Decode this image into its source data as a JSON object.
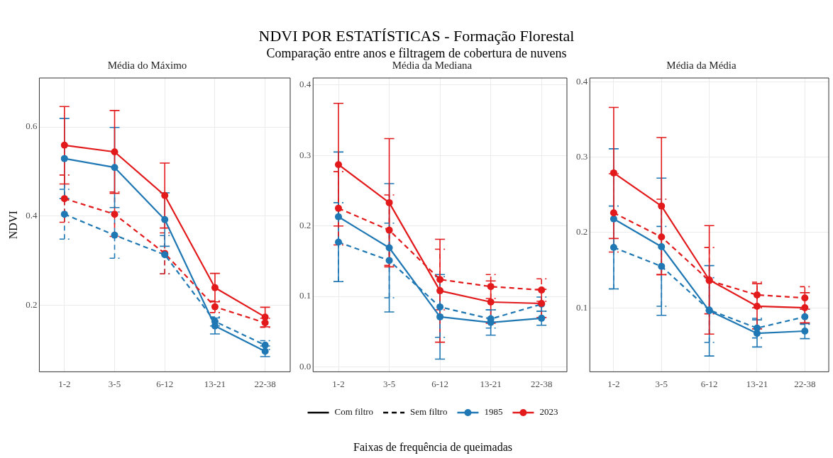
{
  "chart_data": [
    {
      "type": "other",
      "title": "NDVI POR ESTATÍSTICAS - Formação Florestal",
      "subtitle": "Comparação entre anos e filtragem de cobertura de nuvens"
    },
    {
      "type": "line",
      "title": "Média do Máximo",
      "ylabel": "NDVI",
      "categories": [
        "1-2",
        "3-5",
        "6-12",
        "13-21",
        "22-38"
      ],
      "ylim": [
        0.05,
        0.71
      ],
      "yticks": [
        0.2,
        0.4,
        0.6
      ],
      "grid": true,
      "marker": "circle",
      "legend": false,
      "series": [
        {
          "color": "#1f78b4",
          "line_style": "dashed",
          "values": [
            0.404,
            0.357,
            0.313,
            0.163,
            0.11
          ],
          "errors": [
            0.056,
            0.052,
            0.043,
            0.01,
            0.01
          ]
        },
        {
          "color": "#e31a1c",
          "line_style": "dashed",
          "values": [
            0.439,
            0.404,
            0.316,
            0.196,
            0.16
          ],
          "errors": [
            0.053,
            0.05,
            0.046,
            0.013,
            0.01
          ]
        },
        {
          "color": "#1f78b4",
          "line_style": "solid",
          "values": [
            0.529,
            0.509,
            0.392,
            0.153,
            0.096
          ],
          "errors": [
            0.09,
            0.09,
            0.06,
            0.018,
            0.012
          ]
        },
        {
          "color": "#e31a1c",
          "line_style": "solid",
          "values": [
            0.559,
            0.544,
            0.446,
            0.239,
            0.173
          ],
          "errors": [
            0.087,
            0.093,
            0.073,
            0.032,
            0.022
          ]
        }
      ]
    },
    {
      "type": "line",
      "title": "Média da Mediana",
      "xlabel": "Faixas de frequência de queimadas",
      "categories": [
        "1-2",
        "3-5",
        "6-12",
        "13-21",
        "22-38"
      ],
      "ylim": [
        -0.007,
        0.41
      ],
      "yticks": [
        {
          "value": 0,
          "label": "0.0"
        },
        0.1,
        0.2,
        0.3,
        0.4
      ],
      "grid": true,
      "marker": "circle",
      "legend": "bottom",
      "annotations": [
        "Com filtro",
        "Sem filtro"
      ],
      "series": [
        {
          "name": "1985",
          "color": "#1f78b4",
          "line_style": "solid",
          "values": [
            0.213,
            0.169,
            0.071,
            0.063,
            0.069
          ],
          "errors": [
            0.092,
            0.091,
            0.06,
            0.018,
            0.01
          ]
        },
        {
          "name": "2023",
          "color": "#e31a1c",
          "line_style": "solid",
          "values": [
            0.287,
            0.233,
            0.108,
            0.092,
            0.09
          ],
          "errors": [
            0.087,
            0.091,
            0.073,
            0.03,
            0.02
          ]
        },
        {
          "color": "#1f78b4",
          "line_style": "dashed",
          "values": [
            0.177,
            0.151,
            0.085,
            0.068,
            0.089
          ],
          "errors": [
            0.056,
            0.053,
            0.043,
            0.013,
            0.01
          ]
        },
        {
          "color": "#e31a1c",
          "line_style": "dashed",
          "values": [
            0.225,
            0.194,
            0.124,
            0.114,
            0.109
          ],
          "errors": [
            0.052,
            0.05,
            0.043,
            0.017,
            0.016
          ]
        }
      ]
    },
    {
      "type": "line",
      "title": "Média da Média",
      "categories": [
        "1-2",
        "3-5",
        "6-12",
        "13-21",
        "22-38"
      ],
      "ylim": [
        0.015,
        0.405
      ],
      "yticks": [
        0.1,
        0.2,
        0.3,
        0.4
      ],
      "grid": true,
      "marker": "circle",
      "legend": false,
      "series": [
        {
          "color": "#1f78b4",
          "line_style": "dashed",
          "values": [
            0.18,
            0.155,
            0.097,
            0.073,
            0.088
          ],
          "errors": [
            0.055,
            0.053,
            0.043,
            0.013,
            0.01
          ]
        },
        {
          "color": "#e31a1c",
          "line_style": "dashed",
          "values": [
            0.226,
            0.194,
            0.136,
            0.117,
            0.113
          ],
          "errors": [
            0.052,
            0.05,
            0.044,
            0.017,
            0.015
          ]
        },
        {
          "color": "#1f78b4",
          "line_style": "solid",
          "values": [
            0.218,
            0.181,
            0.096,
            0.066,
            0.069
          ],
          "errors": [
            0.093,
            0.091,
            0.06,
            0.018,
            0.01
          ]
        },
        {
          "color": "#e31a1c",
          "line_style": "solid",
          "values": [
            0.279,
            0.235,
            0.137,
            0.102,
            0.1
          ],
          "errors": [
            0.087,
            0.091,
            0.072,
            0.03,
            0.02
          ]
        }
      ]
    }
  ]
}
